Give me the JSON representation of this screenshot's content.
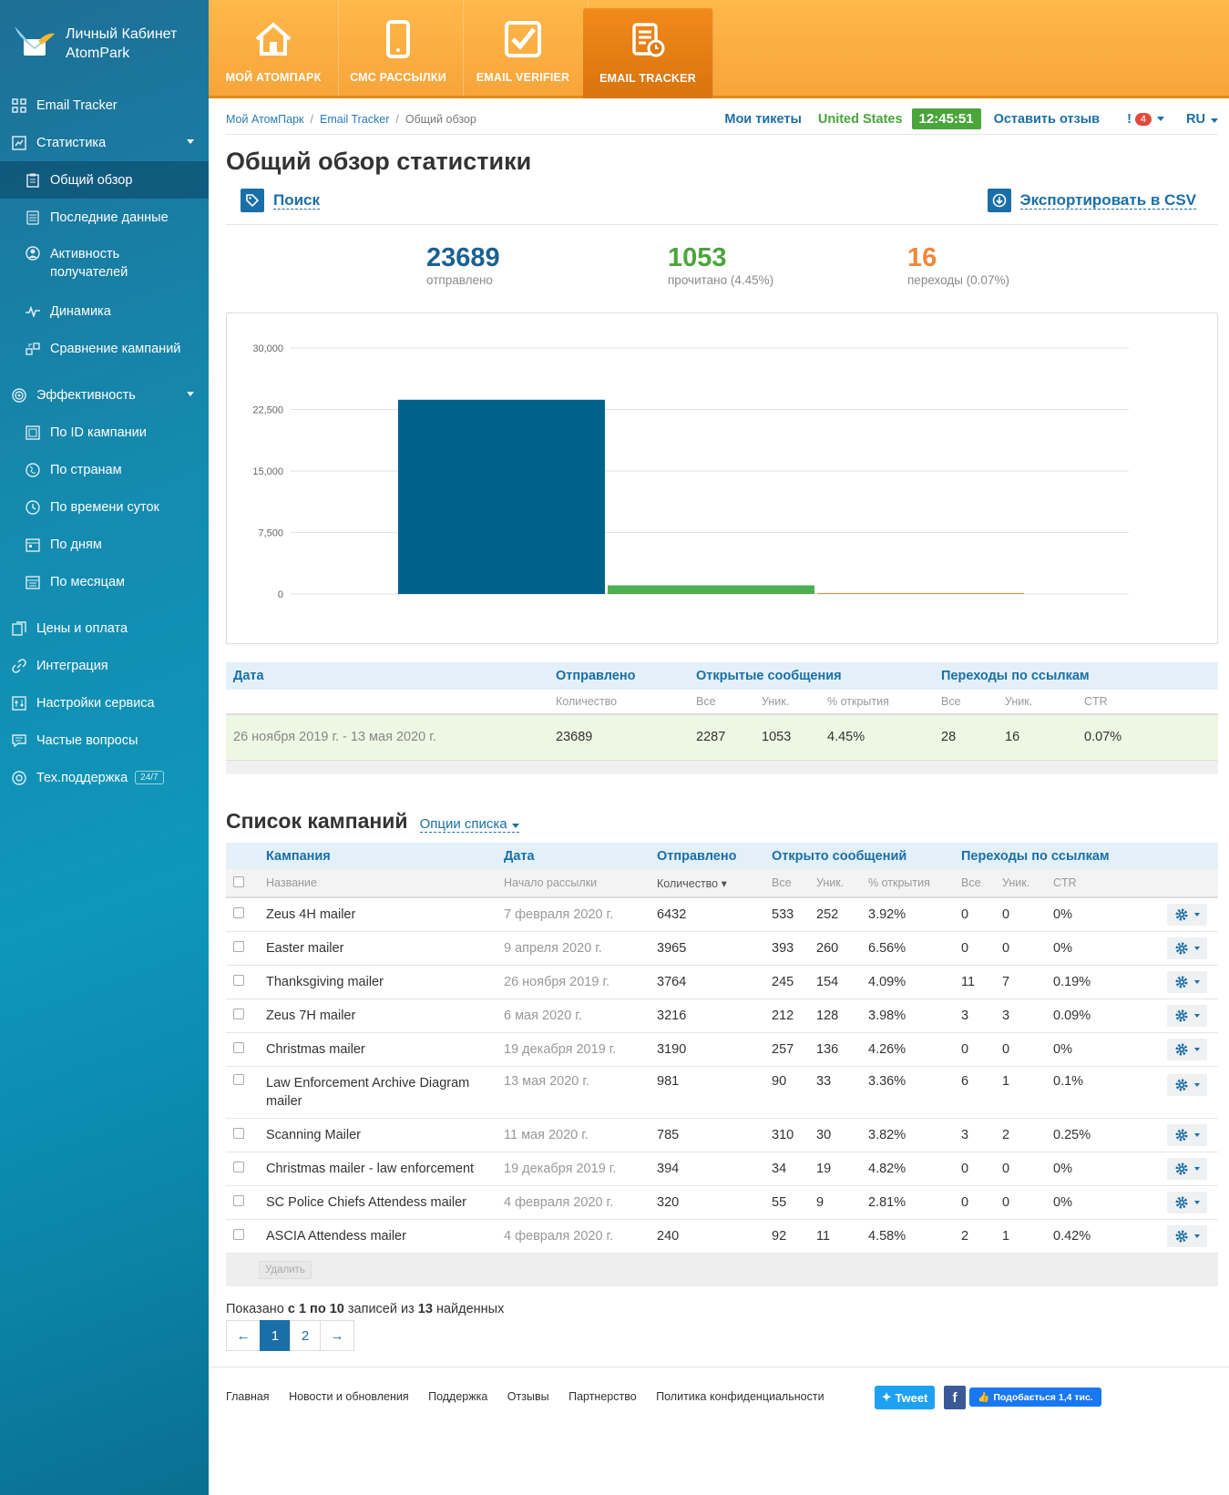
{
  "sidebar": {
    "logo_line1": "Личный Кабинет",
    "logo_line2": "AtomPark",
    "items": [
      {
        "label": "Email Tracker",
        "icon": "grid-icon"
      },
      {
        "label": "Статистика",
        "icon": "chart-icon"
      },
      {
        "label": "Общий обзор",
        "icon": "clipboard-icon"
      },
      {
        "label": "Последние данные",
        "icon": "database-icon"
      },
      {
        "label": "Активность получателей",
        "icon": "user-circle-icon"
      },
      {
        "label": "Динамика",
        "icon": "pulse-icon"
      },
      {
        "label": "Сравнение кампаний",
        "icon": "compare-icon"
      },
      {
        "label": "Эффективность",
        "icon": "target-icon"
      },
      {
        "label": "По ID кампании",
        "icon": "id-icon"
      },
      {
        "label": "По странам",
        "icon": "globe-icon"
      },
      {
        "label": "По времени суток",
        "icon": "clock-icon"
      },
      {
        "label": "По дням",
        "icon": "calendar-icon"
      },
      {
        "label": "По месяцам",
        "icon": "calendar-month-icon"
      },
      {
        "label": "Цены и оплата",
        "icon": "cards-icon"
      },
      {
        "label": "Интеграция",
        "icon": "link-icon"
      },
      {
        "label": "Настройки сервиса",
        "icon": "sliders-icon"
      },
      {
        "label": "Частые вопросы",
        "icon": "comment-icon"
      },
      {
        "label": "Тех.поддержка",
        "icon": "lifebuoy-icon",
        "badge": "24/7"
      }
    ]
  },
  "topnav": {
    "tabs": [
      {
        "label": "МОЙ АТОМПАРК",
        "icon": "home-icon"
      },
      {
        "label": "СМС РАССЫЛКИ",
        "icon": "phone-icon"
      },
      {
        "label": "EMAIL VERIFIER",
        "icon": "checkbox-icon"
      },
      {
        "label": "EMAIL TRACKER",
        "icon": "tracker-icon",
        "active": true
      }
    ]
  },
  "header": {
    "breadcrumb": [
      "Мой АтомПарк",
      "Email Tracker",
      "Общий обзор"
    ],
    "my_tickets": "Мои тикеты",
    "country": "United States",
    "clock": "12:45:51",
    "feedback": "Оставить отзыв",
    "notif_count": "4",
    "lang": "RU"
  },
  "page": {
    "title": "Общий обзор статистики",
    "search": "Поиск",
    "export": "Экспортировать в CSV"
  },
  "summary": {
    "sent": {
      "value": "23689",
      "label": "отправлено",
      "color": "#1a6192"
    },
    "read": {
      "value": "1053",
      "label": "прочитано (4.45%)",
      "color": "#4aa53b"
    },
    "clicks": {
      "value": "16",
      "label": "переходы (0.07%)",
      "color": "#f0883a"
    }
  },
  "chart_data": {
    "type": "bar",
    "categories": [
      "отправлено",
      "прочитано",
      "переходы"
    ],
    "values": [
      23689,
      1053,
      16
    ],
    "colors": [
      "#00628c",
      "#4caf50",
      "#f0883a"
    ],
    "ylim": [
      0,
      30000
    ],
    "yticks": [
      "0",
      "7,500",
      "15,000",
      "22,500",
      "30,000"
    ],
    "grid": true,
    "title": "",
    "xlabel": "",
    "ylabel": ""
  },
  "stats_table": {
    "groups": [
      "Дата",
      "Отправлено",
      "Открытые сообщения",
      "Переходы по ссылкам"
    ],
    "sub": [
      "Количество",
      "Все",
      "Уник.",
      "% открытия",
      "Все",
      "Уник.",
      "CTR"
    ],
    "row": [
      "26 ноября 2019 г. - 13 мая 2020 г.",
      "23689",
      "2287",
      "1053",
      "4.45%",
      "28",
      "16",
      "0.07%"
    ]
  },
  "campaigns": {
    "title": "Список кампаний",
    "options": "Опции списка",
    "groups": [
      "Кампания",
      "Дата",
      "Отправлено",
      "Открыто сообщений",
      "Переходы по ссылкам"
    ],
    "sub": [
      "Название",
      "Начало рассылки",
      "Количество ▾",
      "Все",
      "Уник.",
      "% открытия",
      "Все",
      "Уник.",
      "CTR"
    ],
    "rows": [
      [
        "Zeus 4H mailer",
        "7 февраля 2020 г.",
        "6432",
        "533",
        "252",
        "3.92%",
        "0",
        "0",
        "0%"
      ],
      [
        "Easter mailer",
        "9 апреля 2020 г.",
        "3965",
        "393",
        "260",
        "6.56%",
        "0",
        "0",
        "0%"
      ],
      [
        "Thanksgiving mailer",
        "26 ноября 2019 г.",
        "3764",
        "245",
        "154",
        "4.09%",
        "11",
        "7",
        "0.19%"
      ],
      [
        "Zeus 7H mailer",
        "6 мая 2020 г.",
        "3216",
        "212",
        "128",
        "3.98%",
        "3",
        "3",
        "0.09%"
      ],
      [
        "Christmas mailer",
        "19 декабря 2019 г.",
        "3190",
        "257",
        "136",
        "4.26%",
        "0",
        "0",
        "0%"
      ],
      [
        "Law Enforcement Archive Diagram mailer",
        "13 мая 2020 г.",
        "981",
        "90",
        "33",
        "3.36%",
        "6",
        "1",
        "0.1%"
      ],
      [
        "Scanning Mailer",
        "11 мая 2020 г.",
        "785",
        "310",
        "30",
        "3.82%",
        "3",
        "2",
        "0.25%"
      ],
      [
        "Christmas mailer - law enforcement",
        "19 декабря 2019 г.",
        "394",
        "34",
        "19",
        "4.82%",
        "0",
        "0",
        "0%"
      ],
      [
        "SC Police Chiefs Attendess mailer",
        "4 февраля 2020 г.",
        "320",
        "55",
        "9",
        "2.81%",
        "0",
        "0",
        "0%"
      ],
      [
        "ASCIA Attendess mailer",
        "4 февраля 2020 г.",
        "240",
        "92",
        "11",
        "4.58%",
        "2",
        "1",
        "0.42%"
      ]
    ],
    "delete": "Удалить",
    "shown_prefix": "Показано",
    "shown_range": "с 1 по 10",
    "shown_mid": "записей из",
    "shown_total": "13",
    "shown_suffix": "найденных",
    "pages": [
      "←",
      "1",
      "2",
      "→"
    ]
  },
  "footer": {
    "links": [
      "Главная",
      "Новости и обновления",
      "Поддержка",
      "Отзывы",
      "Партнерство",
      "Политика конфиденциальности"
    ],
    "tweet": "Tweet",
    "fb": "f",
    "like": "Подобається 1,4 тис."
  }
}
